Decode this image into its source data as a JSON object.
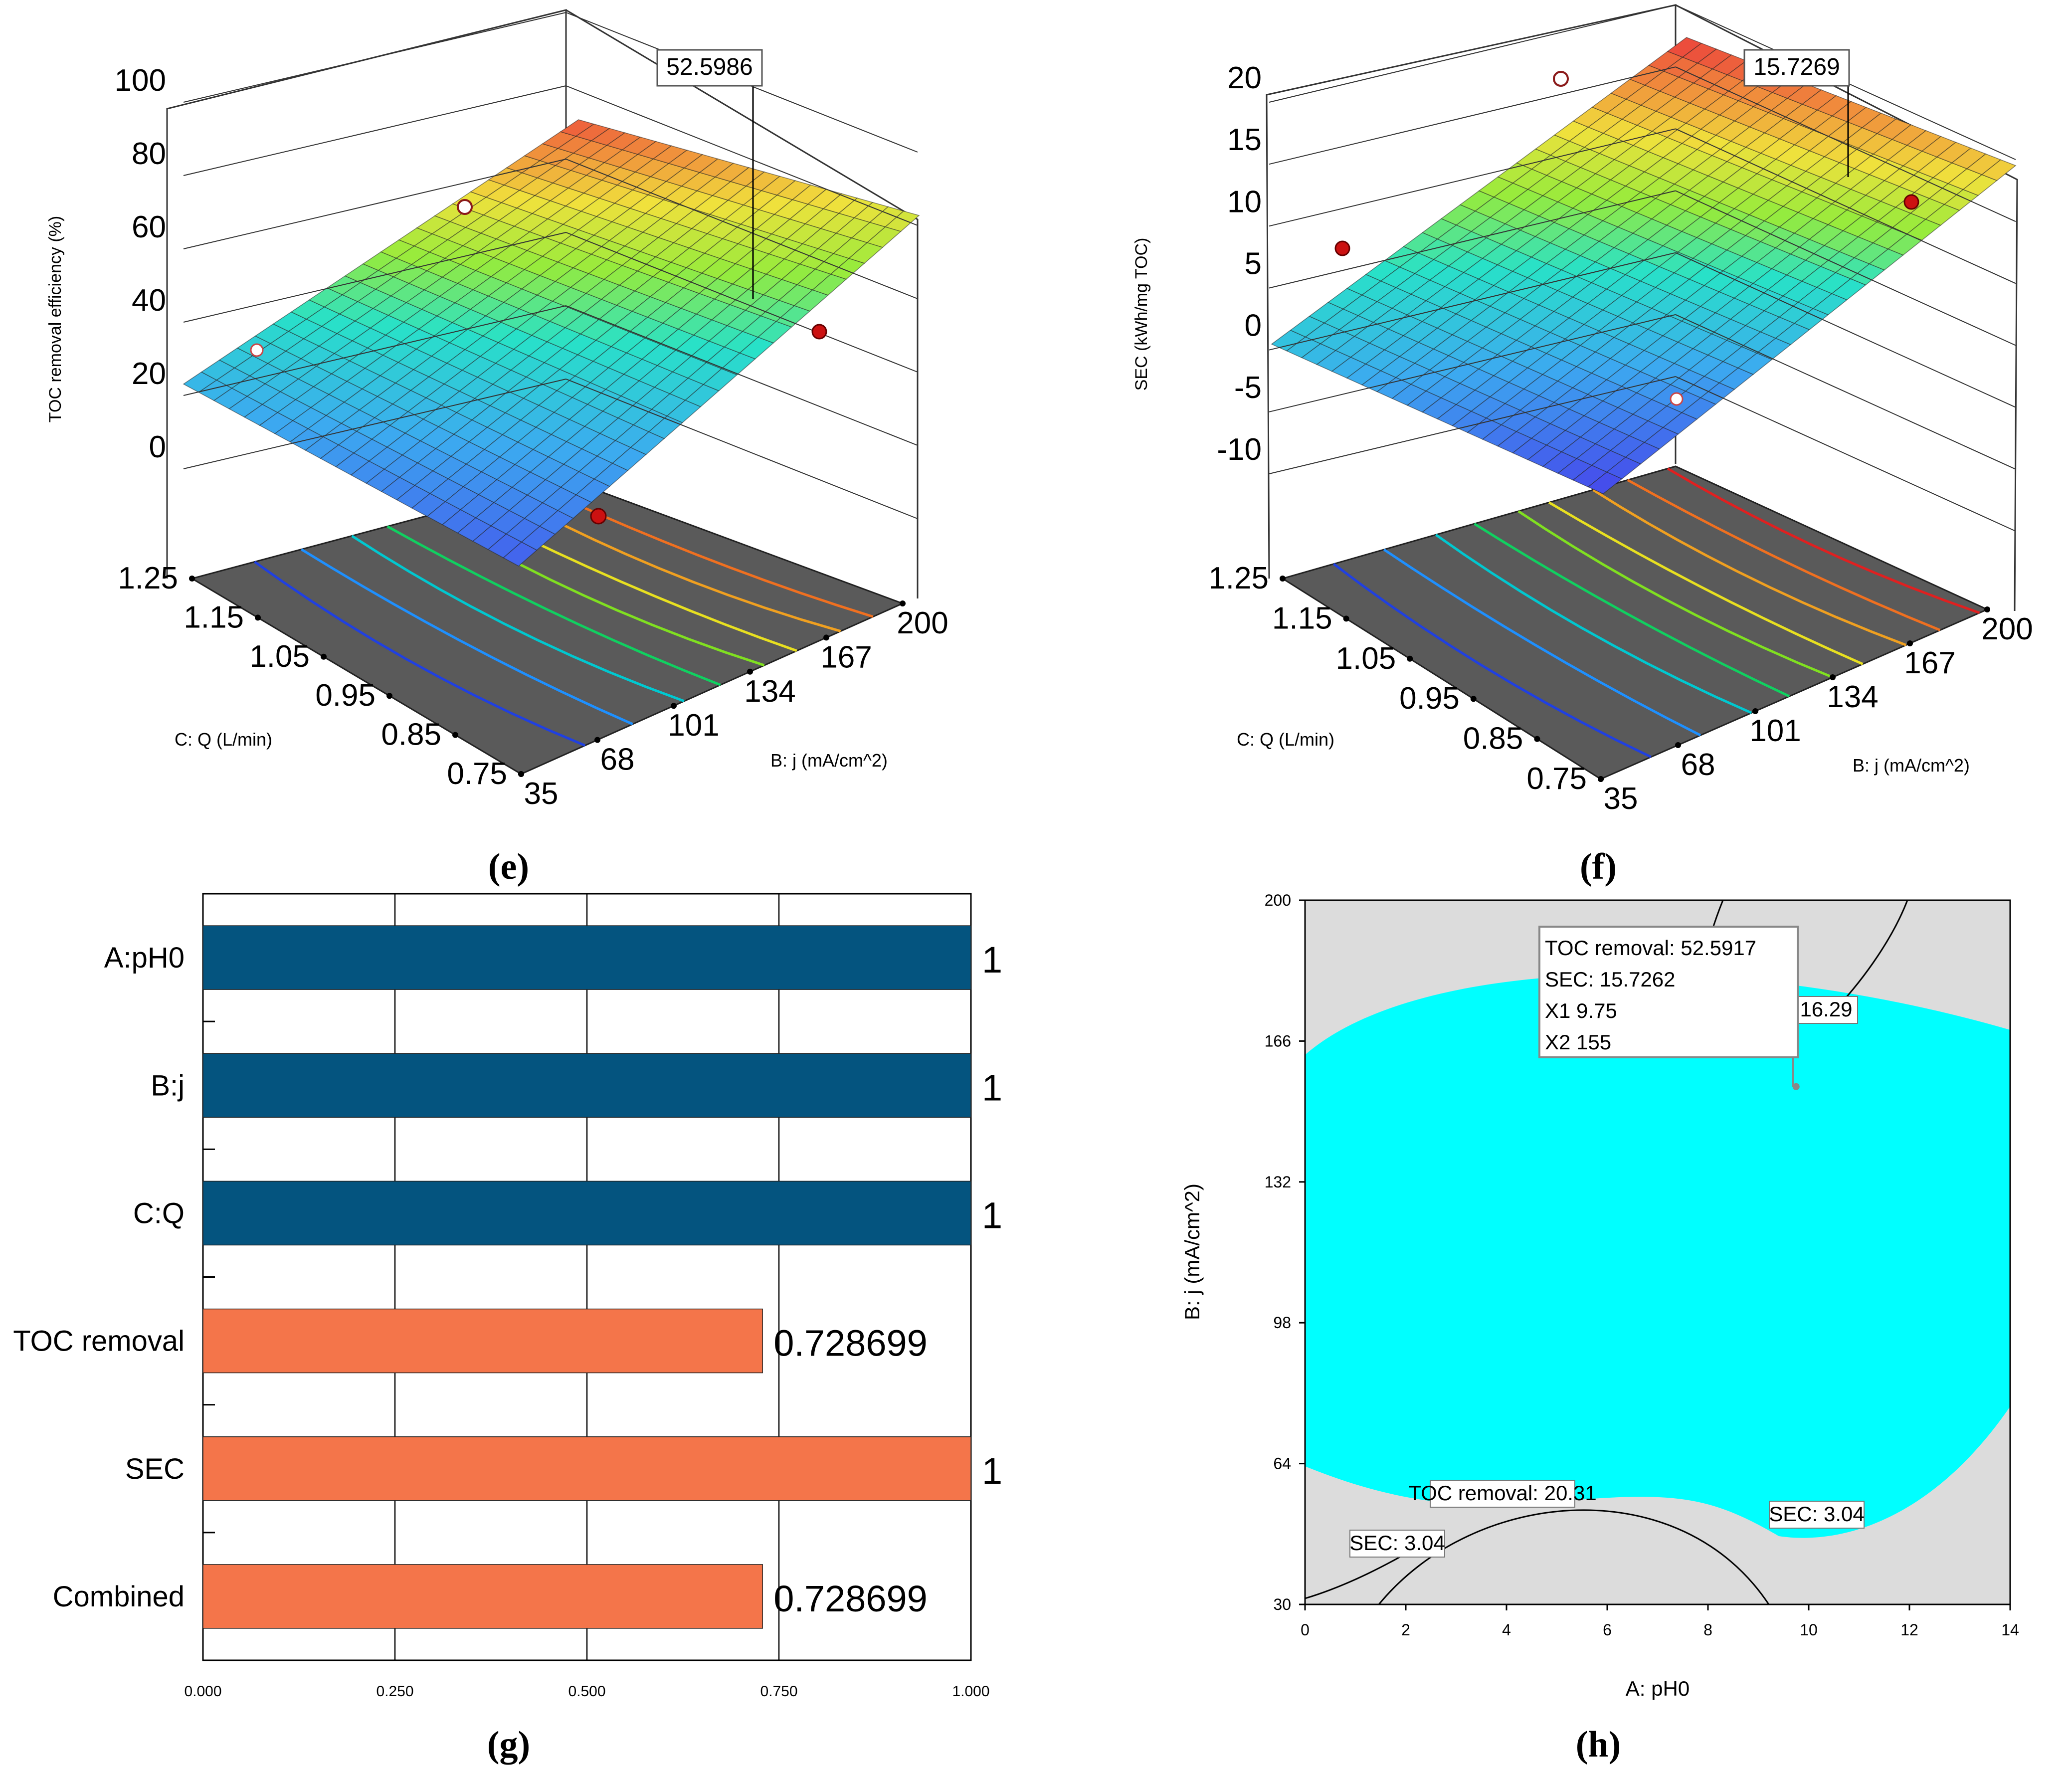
{
  "chart_data": [
    {
      "panel": "e",
      "type": "surface3d",
      "zlabel": "TOC removal efficiency  (%)",
      "xlabel": "B: j (mA/cm^2)",
      "ylabel": "C: Q (L/min)",
      "zticks": [
        "0",
        "20",
        "40",
        "60",
        "80",
        "100"
      ],
      "xticks": [
        "35",
        "68",
        "101",
        "134",
        "167",
        "200"
      ],
      "yticks": [
        "0.75",
        "0.85",
        "0.95",
        "1.05",
        "1.15",
        "1.25"
      ],
      "annotation": "52.5986",
      "corner_values": {
        "low_j_high_Q": 18,
        "low_j_low_Q": 0,
        "high_j_low_Q": 52,
        "high_j_high_Q": 72
      }
    },
    {
      "panel": "f",
      "type": "surface3d",
      "zlabel": "SEC (kWh/mg TOC)",
      "xlabel": "B: j (mA/cm^2)",
      "ylabel": "C: Q (L/min)",
      "zticks": [
        "-10",
        "-5",
        "0",
        "5",
        "10",
        "15",
        "20"
      ],
      "xticks": [
        "35",
        "68",
        "101",
        "134",
        "167",
        "200"
      ],
      "yticks": [
        "0.75",
        "0.85",
        "0.95",
        "1.05",
        "1.15",
        "1.25"
      ],
      "annotation": "15.7269",
      "corner_values": {
        "low_j_high_Q": 0,
        "low_j_low_Q": -10,
        "high_j_low_Q": 14,
        "high_j_high_Q": 20
      }
    },
    {
      "panel": "g",
      "type": "bar",
      "orientation": "horizontal",
      "categories": [
        "A:pH0",
        "B:j",
        "C:Q",
        "TOC removal",
        "SEC",
        "Combined"
      ],
      "values": [
        1,
        1,
        1,
        0.728699,
        1,
        0.728699
      ],
      "value_labels": [
        "1",
        "1",
        "1",
        "0.728699",
        "1",
        "0.728699"
      ],
      "colors": [
        "#04547f",
        "#04547f",
        "#04547f",
        "#f4754a",
        "#f4754a",
        "#f4754a"
      ],
      "xlim": [
        0,
        1
      ],
      "xticks": [
        "0.000",
        "0.250",
        "0.500",
        "0.750",
        "1.000"
      ]
    },
    {
      "panel": "h",
      "type": "contour-overlay",
      "xlabel": "A: pH0",
      "ylabel": "B: j (mA/cm^2)",
      "xlim": [
        0,
        14
      ],
      "ylim": [
        30,
        200
      ],
      "xticks": [
        "0",
        "2",
        "4",
        "6",
        "8",
        "10",
        "12",
        "14"
      ],
      "yticks": [
        "30",
        "64",
        "98",
        "132",
        "166",
        "200"
      ],
      "feasible_color": "#00ffff",
      "infeasible_color": "#dcdcdc",
      "contour_labels": [
        "TOC removal: 20.31",
        "SEC: 3.04",
        "SEC: 3.04",
        "16.29"
      ],
      "flag": {
        "lines": [
          "TOC removal:   52.5917",
          "SEC:   15.7262",
          "X1  9.75",
          "X2  155"
        ],
        "x": 9.75,
        "y": 155
      }
    }
  ],
  "panel_labels": [
    "(e)",
    "(f)",
    "(g)",
    "(h)"
  ]
}
